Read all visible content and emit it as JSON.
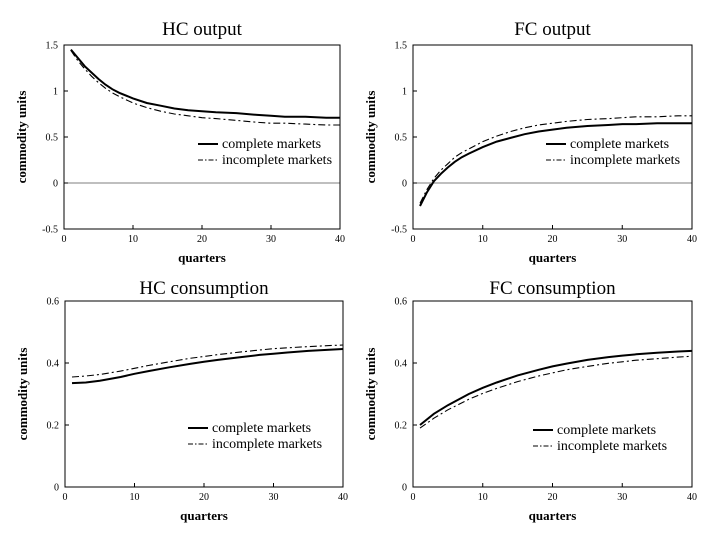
{
  "chart_data": [
    {
      "type": "line",
      "title": "HC output",
      "xlabel": "quarters",
      "ylabel": "commodity units",
      "xlim": [
        0,
        40
      ],
      "ylim": [
        -0.5,
        1.5
      ],
      "xticks": [
        0,
        10,
        20,
        30,
        40
      ],
      "yticks": [
        -0.5,
        0,
        0.5,
        1,
        1.5
      ],
      "ytick_labels": [
        "-0.5",
        "0",
        "0.5",
        "1",
        "1.5"
      ],
      "zero_line": true,
      "legend_position": "right",
      "x": [
        1,
        2,
        3,
        4,
        5,
        6,
        7,
        8,
        10,
        12,
        14,
        16,
        18,
        20,
        22,
        25,
        28,
        30,
        32,
        35,
        38,
        40
      ],
      "series": [
        {
          "name": "complete markets",
          "style": "solid",
          "values": [
            1.45,
            1.36,
            1.27,
            1.2,
            1.13,
            1.07,
            1.02,
            0.98,
            0.92,
            0.87,
            0.84,
            0.81,
            0.79,
            0.78,
            0.77,
            0.76,
            0.74,
            0.73,
            0.72,
            0.72,
            0.71,
            0.71
          ]
        },
        {
          "name": "incomplete markets",
          "style": "dashdot",
          "values": [
            1.44,
            1.33,
            1.24,
            1.16,
            1.09,
            1.03,
            0.98,
            0.94,
            0.87,
            0.82,
            0.78,
            0.75,
            0.73,
            0.71,
            0.7,
            0.68,
            0.66,
            0.65,
            0.65,
            0.64,
            0.63,
            0.63
          ]
        }
      ]
    },
    {
      "type": "line",
      "title": "FC output",
      "xlabel": "quarters",
      "ylabel": "commodity units",
      "xlim": [
        0,
        40
      ],
      "ylim": [
        -0.5,
        1.5
      ],
      "xticks": [
        0,
        10,
        20,
        30,
        40
      ],
      "yticks": [
        -0.5,
        0,
        0.5,
        1,
        1.5
      ],
      "ytick_labels": [
        "-0.5",
        "0",
        "0.5",
        "1",
        "1.5"
      ],
      "zero_line": true,
      "legend_position": "right",
      "x": [
        1,
        2,
        3,
        4,
        5,
        6,
        7,
        8,
        10,
        12,
        14,
        16,
        18,
        20,
        22,
        25,
        28,
        30,
        32,
        35,
        38,
        40
      ],
      "series": [
        {
          "name": "complete markets",
          "style": "solid",
          "values": [
            -0.25,
            -0.1,
            0.02,
            0.1,
            0.17,
            0.23,
            0.28,
            0.32,
            0.39,
            0.45,
            0.49,
            0.53,
            0.56,
            0.58,
            0.6,
            0.62,
            0.63,
            0.64,
            0.64,
            0.65,
            0.65,
            0.65
          ]
        },
        {
          "name": "incomplete markets",
          "style": "dashdot",
          "values": [
            -0.22,
            -0.07,
            0.05,
            0.14,
            0.21,
            0.28,
            0.33,
            0.37,
            0.45,
            0.51,
            0.56,
            0.6,
            0.63,
            0.65,
            0.67,
            0.69,
            0.7,
            0.71,
            0.72,
            0.72,
            0.73,
            0.73
          ]
        }
      ]
    },
    {
      "type": "line",
      "title": "HC consumption",
      "xlabel": "quarters",
      "ylabel": "commodity units",
      "xlim": [
        0,
        40
      ],
      "ylim": [
        0,
        0.6
      ],
      "xticks": [
        0,
        10,
        20,
        30,
        40
      ],
      "yticks": [
        0,
        0.2,
        0.4,
        0.6
      ],
      "ytick_labels": [
        "0",
        "0.2",
        "0.4",
        "0.6"
      ],
      "zero_line": false,
      "legend_position": "bottom-right",
      "x": [
        1,
        3,
        5,
        8,
        10,
        12,
        15,
        18,
        20,
        22,
        25,
        28,
        30,
        32,
        35,
        38,
        40
      ],
      "series": [
        {
          "name": "complete markets",
          "style": "solid",
          "values": [
            0.335,
            0.337,
            0.343,
            0.355,
            0.365,
            0.374,
            0.386,
            0.397,
            0.404,
            0.41,
            0.418,
            0.426,
            0.43,
            0.434,
            0.439,
            0.443,
            0.445
          ]
        },
        {
          "name": "incomplete markets",
          "style": "dashdot",
          "values": [
            0.355,
            0.358,
            0.363,
            0.374,
            0.383,
            0.392,
            0.404,
            0.415,
            0.421,
            0.427,
            0.435,
            0.442,
            0.446,
            0.449,
            0.453,
            0.456,
            0.458
          ]
        }
      ]
    },
    {
      "type": "line",
      "title": "FC consumption",
      "xlabel": "quarters",
      "ylabel": "commodity units",
      "xlim": [
        0,
        40
      ],
      "ylim": [
        0,
        0.6
      ],
      "xticks": [
        0,
        10,
        20,
        30,
        40
      ],
      "yticks": [
        0,
        0.2,
        0.4,
        0.6
      ],
      "ytick_labels": [
        "0",
        "0.2",
        "0.4",
        "0.6"
      ],
      "zero_line": false,
      "legend_position": "bottom-right",
      "x": [
        1,
        3,
        5,
        8,
        10,
        12,
        15,
        18,
        20,
        22,
        25,
        28,
        30,
        32,
        35,
        38,
        40
      ],
      "series": [
        {
          "name": "complete markets",
          "style": "solid",
          "values": [
            0.2,
            0.236,
            0.264,
            0.3,
            0.32,
            0.337,
            0.36,
            0.378,
            0.389,
            0.398,
            0.41,
            0.419,
            0.424,
            0.428,
            0.433,
            0.437,
            0.439
          ]
        },
        {
          "name": "incomplete markets",
          "style": "dashdot",
          "values": [
            0.19,
            0.222,
            0.249,
            0.283,
            0.302,
            0.318,
            0.34,
            0.358,
            0.368,
            0.378,
            0.389,
            0.399,
            0.404,
            0.409,
            0.414,
            0.419,
            0.422
          ]
        }
      ]
    }
  ]
}
